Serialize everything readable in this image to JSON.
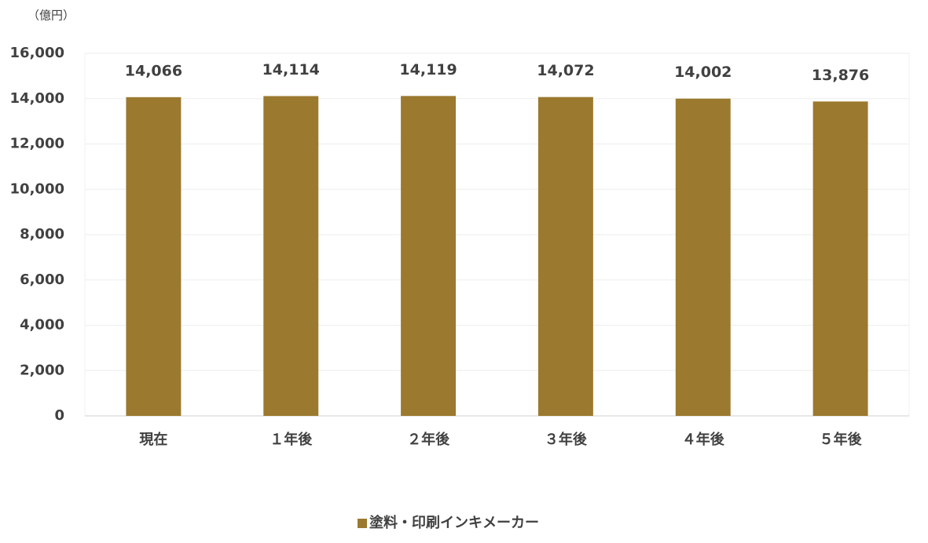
{
  "chart_data": {
    "type": "bar",
    "unit_label": "（億円）",
    "categories": [
      "現在",
      "１年後",
      "２年後",
      "３年後",
      "４年後",
      "５年後"
    ],
    "series": [
      {
        "name": "塗料・印刷インキメーカー",
        "color": "#9b792e",
        "values": [
          14066,
          14114,
          14119,
          14072,
          14002,
          13876
        ],
        "value_labels": [
          "14,066",
          "14,114",
          "14,119",
          "14,072",
          "14,002",
          "13,876"
        ]
      }
    ],
    "ylim": [
      0,
      16000
    ],
    "yticks": [
      0,
      {
        "value": 2000,
        "label": "2,000"
      },
      {
        "value": 4000,
        "label": "4,000"
      },
      {
        "value": 6000,
        "label": "6,000"
      },
      {
        "value": 8000,
        "label": "8,000"
      },
      {
        "value": 10000,
        "label": "10,000"
      },
      {
        "value": 12000,
        "label": "12,000"
      },
      {
        "value": 14000,
        "label": "14,000"
      },
      {
        "value": 16000,
        "label": "16,000"
      }
    ],
    "grid": true,
    "legend": "bottom"
  }
}
